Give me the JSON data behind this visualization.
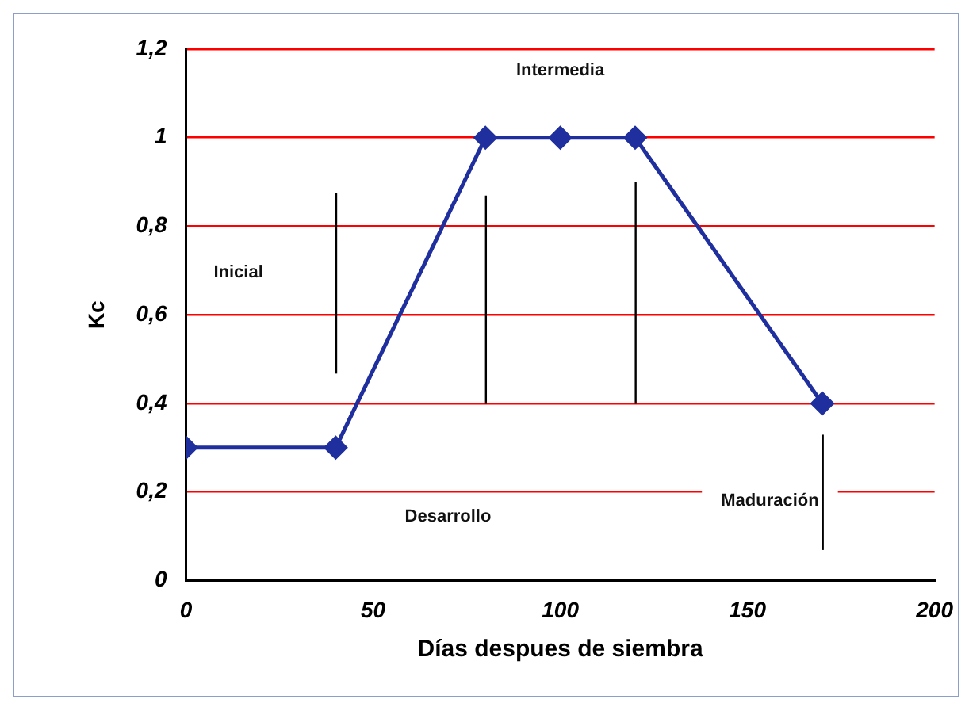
{
  "chart_data": {
    "type": "line",
    "xlabel": "Días despues de siembra",
    "ylabel": "Kc",
    "x": [
      0,
      40,
      80,
      100,
      120,
      170
    ],
    "series": [
      {
        "color": "#1f2f9e",
        "values": [
          0.3,
          0.3,
          1,
          1,
          1,
          0.4
        ]
      }
    ],
    "xlim": [
      0,
      200
    ],
    "xticks": [
      0,
      50,
      100,
      150,
      200
    ],
    "ylim": [
      0,
      1.2
    ],
    "yticks": [
      0,
      {
        "value": 0.2,
        "label": "0,2"
      },
      {
        "value": 0.4,
        "label": "0,4"
      },
      {
        "value": 0.6,
        "label": "0,6"
      },
      {
        "value": 0.8,
        "label": "0,8"
      },
      1,
      {
        "value": 1.2,
        "label": "1,2"
      }
    ],
    "grid": "y",
    "legend": false,
    "marker": "diamond",
    "line_style": "solid",
    "annotations": [
      "Inicial",
      "Intermedia",
      "Desarrollo",
      "Maduración"
    ]
  }
}
